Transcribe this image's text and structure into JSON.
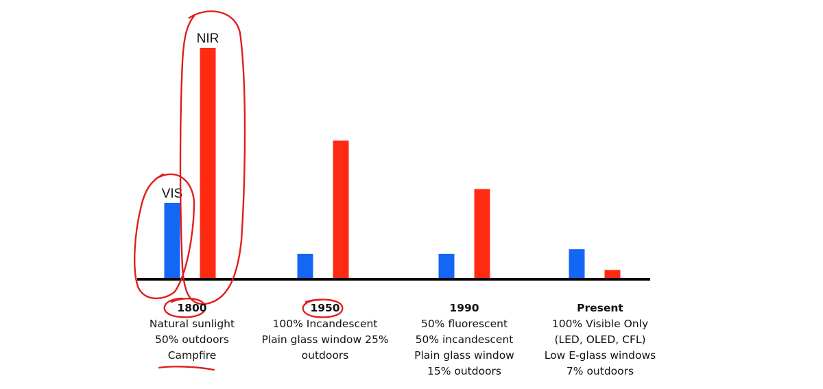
{
  "colors": {
    "vis": "#1466f4",
    "nir": "#ff2a12",
    "axis": "#000000",
    "annotation": "#e01e1e"
  },
  "chart_data": {
    "type": "bar",
    "title": "",
    "xlabel": "",
    "ylabel": "",
    "ylim": [
      0,
      100
    ],
    "grid": false,
    "categories": [
      "1800",
      "1950",
      "1990",
      "Present"
    ],
    "category_descriptions": [
      [
        "Natural sunlight",
        "50% outdoors",
        "Campfire"
      ],
      [
        "100% Incandescent",
        "Plain glass window 25%",
        "outdoors"
      ],
      [
        "50% fluorescent",
        "50% incandescent",
        "Plain glass window",
        "15% outdoors"
      ],
      [
        "100% Visible Only",
        "(LED, OLED, CFL)",
        "Low E-glass windows",
        "7% outdoors"
      ]
    ],
    "series": [
      {
        "name": "VIS",
        "values": [
          33,
          11,
          11,
          13
        ]
      },
      {
        "name": "NIR",
        "values": [
          100,
          60,
          39,
          4
        ]
      }
    ],
    "series_labels_shown_on": "1800"
  }
}
